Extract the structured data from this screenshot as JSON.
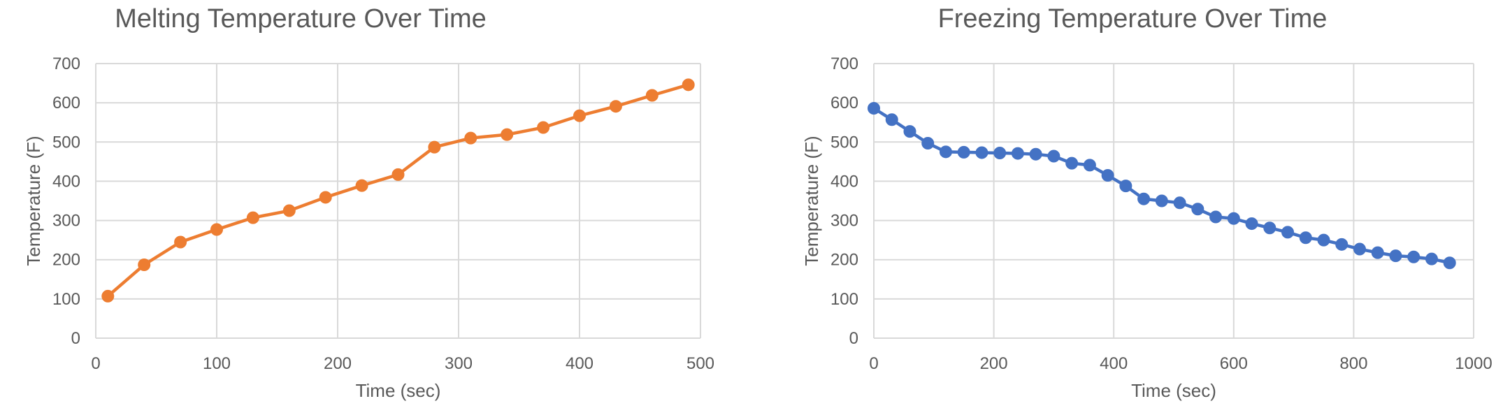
{
  "chart_data": [
    {
      "type": "line",
      "title": "Melting Temperature Over Time",
      "xlabel": "Time (sec)",
      "ylabel": "Temperature (F)",
      "xlim": [
        0,
        500
      ],
      "ylim": [
        0,
        700
      ],
      "xticks": [
        0,
        100,
        200,
        300,
        400,
        500
      ],
      "yticks": [
        0,
        100,
        200,
        300,
        400,
        500,
        600,
        700
      ],
      "grid": true,
      "color": "#ED7D31",
      "x": [
        10,
        40,
        70,
        100,
        130,
        160,
        190,
        220,
        250,
        280,
        310,
        340,
        370,
        400,
        430,
        460,
        490
      ],
      "y": [
        107,
        187,
        245,
        277,
        307,
        325,
        359,
        389,
        417,
        487,
        510,
        519,
        537,
        567,
        591,
        619,
        646
      ]
    },
    {
      "type": "line",
      "title": "Freezing Temperature Over Time",
      "xlabel": "Time (sec)",
      "ylabel": "Temperature (F)",
      "xlim": [
        0,
        1000
      ],
      "ylim": [
        0,
        700
      ],
      "xticks": [
        0,
        200,
        400,
        600,
        800,
        1000
      ],
      "yticks": [
        0,
        100,
        200,
        300,
        400,
        500,
        600,
        700
      ],
      "grid": true,
      "color": "#4472C4",
      "x": [
        0,
        30,
        60,
        90,
        120,
        150,
        180,
        210,
        240,
        270,
        300,
        330,
        360,
        390,
        420,
        450,
        480,
        510,
        540,
        570,
        600,
        630,
        660,
        690,
        720,
        750,
        780,
        810,
        840,
        870,
        900,
        930,
        960
      ],
      "y": [
        586,
        557,
        527,
        497,
        475,
        474,
        473,
        472,
        471,
        469,
        464,
        446,
        441,
        415,
        388,
        355,
        350,
        345,
        329,
        309,
        305,
        292,
        281,
        270,
        256,
        250,
        239,
        227,
        218,
        210,
        207,
        202,
        192
      ]
    }
  ]
}
